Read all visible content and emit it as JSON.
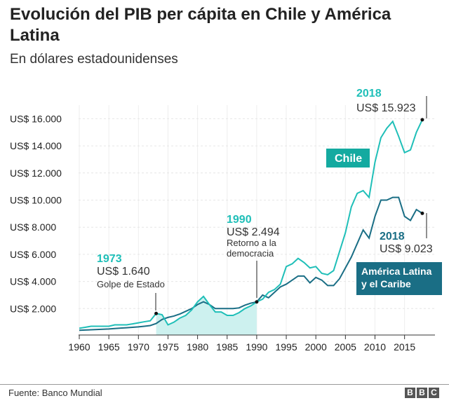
{
  "chart_data": {
    "type": "line",
    "title": "Evolución del PIB per cápita en Chile y América Latina",
    "subtitle": "En dólares estadounidenses",
    "source": "Fuente: Banco Mundial",
    "logo": "BBC",
    "xlim": [
      1960,
      2019
    ],
    "ylim": [
      0,
      17000
    ],
    "x_ticks": [
      1960,
      1965,
      1970,
      1975,
      1980,
      1985,
      1990,
      1995,
      2000,
      2005,
      2010,
      2015
    ],
    "y_ticks": [
      {
        "v": 2000,
        "label": "US$ 2.000"
      },
      {
        "v": 4000,
        "label": "US$ 4.000"
      },
      {
        "v": 6000,
        "label": "US$ 6.000"
      },
      {
        "v": 8000,
        "label": "US$ 8.000"
      },
      {
        "v": 10000,
        "label": "US$ 10.000"
      },
      {
        "v": 12000,
        "label": "US$ 12.000"
      },
      {
        "v": 14000,
        "label": "US$ 14.000"
      },
      {
        "v": 16000,
        "label": "US$ 16.000"
      }
    ],
    "x": [
      1960,
      1961,
      1962,
      1963,
      1964,
      1965,
      1966,
      1967,
      1968,
      1969,
      1970,
      1971,
      1972,
      1973,
      1974,
      1975,
      1976,
      1977,
      1978,
      1979,
      1980,
      1981,
      1982,
      1983,
      1984,
      1985,
      1986,
      1987,
      1988,
      1989,
      1990,
      1991,
      1992,
      1993,
      1994,
      1995,
      1996,
      1997,
      1998,
      1999,
      2000,
      2001,
      2002,
      2003,
      2004,
      2005,
      2006,
      2007,
      2008,
      2009,
      2010,
      2011,
      2012,
      2013,
      2014,
      2015,
      2016,
      2017,
      2018
    ],
    "series": [
      {
        "name": "Chile",
        "color": "#1fbfb8",
        "values": [
          550,
          620,
          700,
          700,
          700,
          700,
          800,
          800,
          800,
          870,
          950,
          1030,
          1100,
          1640,
          1550,
          800,
          1000,
          1300,
          1500,
          1900,
          2500,
          2900,
          2300,
          1750,
          1750,
          1500,
          1500,
          1700,
          2000,
          2200,
          2494,
          2700,
          3200,
          3400,
          3800,
          5100,
          5300,
          5700,
          5400,
          5000,
          5100,
          4600,
          4500,
          4800,
          6200,
          7600,
          9500,
          10500,
          10700,
          10200,
          12800,
          14600,
          15300,
          15800,
          14700,
          13500,
          13700,
          15000,
          15923
        ]
      },
      {
        "name": "América Latina y el Caribe",
        "color": "#1a6e85",
        "values": [
          400,
          420,
          440,
          460,
          480,
          500,
          530,
          560,
          590,
          620,
          650,
          700,
          750,
          900,
          1200,
          1350,
          1450,
          1600,
          1800,
          2000,
          2300,
          2500,
          2300,
          2000,
          2000,
          2000,
          2000,
          2050,
          2250,
          2400,
          2494,
          3000,
          2800,
          3200,
          3600,
          3800,
          4100,
          4400,
          4400,
          3900,
          4300,
          4100,
          3700,
          3700,
          4200,
          5000,
          5800,
          6800,
          7800,
          7200,
          8800,
          10000,
          10000,
          10200,
          10200,
          8800,
          8500,
          9300,
          9023
        ]
      }
    ],
    "shaded_period": [
      1973,
      1990
    ],
    "annotations": [
      {
        "year": "1973",
        "value": "US$ 1.640",
        "note": "Golpe de Estado"
      },
      {
        "year": "1990",
        "value": "US$ 2.494",
        "note1": "Retorno a la",
        "note2": "democracia"
      },
      {
        "year": "2018",
        "value": "US$ 15.923"
      },
      {
        "year": "2018",
        "value": "US$ 9.023"
      }
    ],
    "labels": {
      "chile": "Chile",
      "latam1": "América Latina",
      "latam2": "y el Caribe"
    }
  }
}
